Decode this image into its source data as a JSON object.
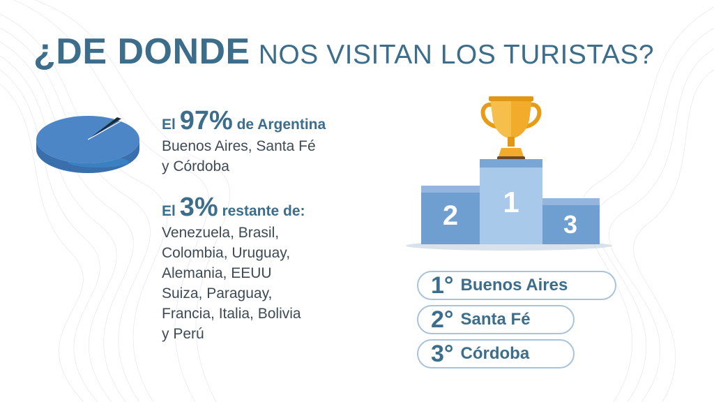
{
  "title": {
    "bold": "¿DE DONDE",
    "light": "NOS VISITAN LOS TURISTAS?"
  },
  "argentina": {
    "prefix": "El",
    "percent": "97%",
    "suffix": "de Argentina",
    "lines": [
      "Buenos Aires, Santa Fé",
      "y Córdoba"
    ]
  },
  "others": {
    "prefix": "El",
    "percent": "3%",
    "suffix": "restante de:",
    "lines": [
      "Venezuela, Brasil,",
      "Colombia, Uruguay,",
      "Alemania, EEUU",
      "Suiza, Paraguay,",
      "Francia, Italia, Bolivia",
      "y Perú"
    ]
  },
  "pie": {
    "share_argentina": 97,
    "share_other": 3
  },
  "podium": {
    "first": "1",
    "second": "2",
    "third": "3"
  },
  "ranking": [
    {
      "rank": "1°",
      "place": "Buenos Aires"
    },
    {
      "rank": "2°",
      "place": "Santa Fé"
    },
    {
      "rank": "3°",
      "place": "Córdoba"
    }
  ],
  "colors": {
    "title": "#3c6e8c",
    "pie": "#4d86c6",
    "podium_side": "#6f9fd1",
    "podium_center": "#a9c9ea",
    "trophy": "#f0a51e"
  }
}
